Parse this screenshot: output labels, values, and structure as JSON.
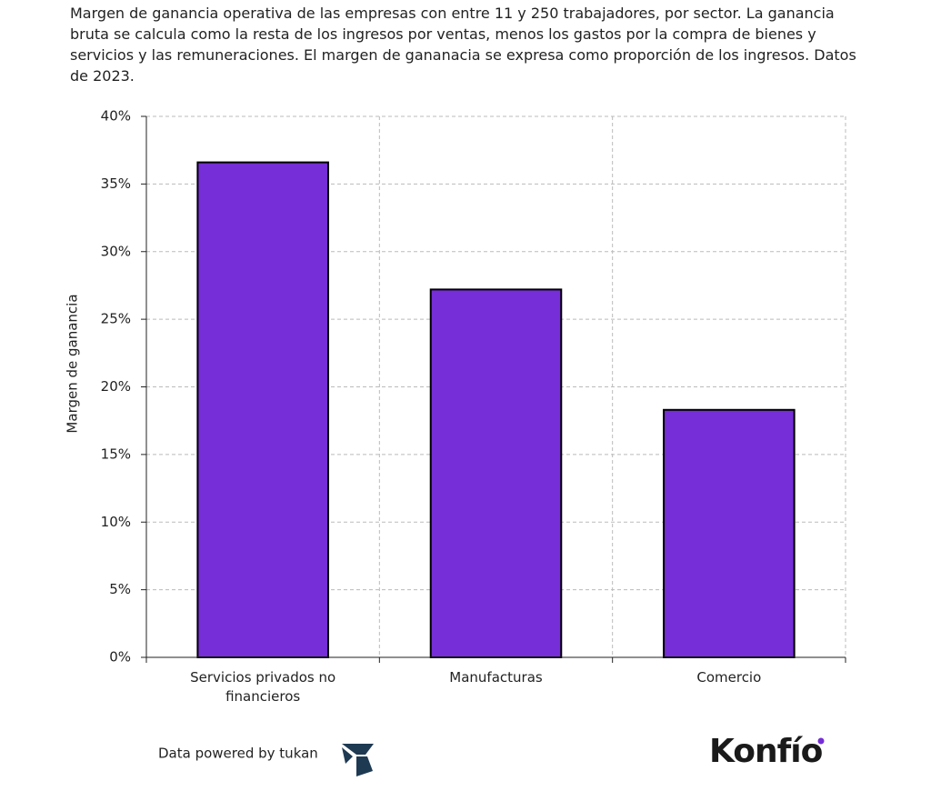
{
  "chart_data": {
    "type": "bar",
    "title": "Margen de ganancia operativa de las empresas con entre 11 y 250 trabajadores, por sector. La ganancia bruta se calcula como la resta de los ingresos por ventas, menos los gastos por la compra de bienes y servicios y las remuneraciones. El margen de gananacia se expresa como proporción de los ingresos. Datos de 2023.",
    "y_label": "Margen de ganancia",
    "categories": [
      "Servicios privados no financieros",
      "Manufacturas",
      "Comercio"
    ],
    "values": [
      36.6,
      27.2,
      18.3
    ],
    "color": "#762ed8",
    "ylim": [
      0,
      40
    ],
    "yticks": [
      {
        "value": 0,
        "label": "0%"
      },
      {
        "value": 5,
        "label": "5%"
      },
      {
        "value": 10,
        "label": "10%"
      },
      {
        "value": 15,
        "label": "15%"
      },
      {
        "value": 20,
        "label": "20%"
      },
      {
        "value": 25,
        "label": "25%"
      },
      {
        "value": 30,
        "label": "30%"
      },
      {
        "value": 35,
        "label": "35%"
      },
      {
        "value": 40,
        "label": "40%"
      }
    ],
    "grid": true
  },
  "footer": {
    "source": "Data powered by tukan",
    "brand": "Konfío"
  }
}
